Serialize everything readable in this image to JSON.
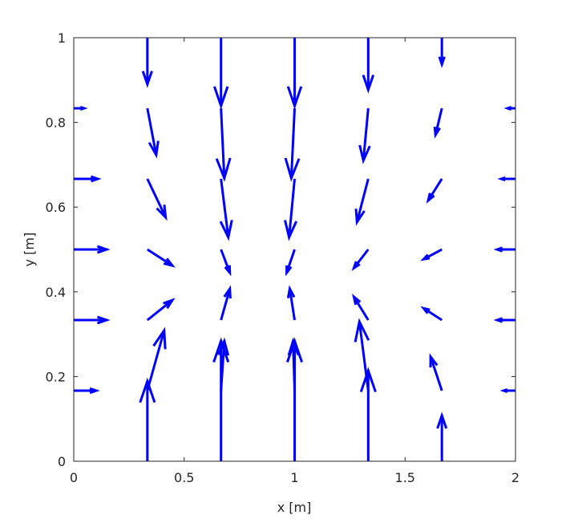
{
  "chart_data": {
    "type": "quiver",
    "title": "",
    "xlabel": "x  [m]",
    "ylabel": "y  [m]",
    "xlim": [
      0,
      2
    ],
    "ylim": [
      0,
      1
    ],
    "xticks": [
      0,
      0.5,
      1,
      1.5,
      2
    ],
    "xtick_labels": [
      "0",
      "0.5",
      "1",
      "1.5",
      "2"
    ],
    "yticks": [
      0,
      0.2,
      0.4,
      0.6,
      0.8,
      1
    ],
    "ytick_labels": [
      "0",
      "0.2",
      "0.4",
      "0.6",
      "0.8",
      "1"
    ],
    "grid": false,
    "color": "#0000ff",
    "vectors_xyuv": [
      [
        0,
        0.8333,
        0.047,
        0
      ],
      [
        0,
        0.6667,
        0.109,
        0
      ],
      [
        0,
        0.5,
        0.149,
        0
      ],
      [
        0,
        0.3333,
        0.149,
        0
      ],
      [
        0,
        0.1667,
        0.102,
        0
      ],
      [
        0.3333,
        1,
        0,
        -0.11
      ],
      [
        0.3333,
        0.8333,
        0.04,
        -0.11
      ],
      [
        0.3333,
        0.6667,
        0.083,
        -0.091
      ],
      [
        0.3333,
        0.5,
        0.113,
        -0.038
      ],
      [
        0.3333,
        0.3333,
        0.113,
        0.047
      ],
      [
        0.3333,
        0.1667,
        0.076,
        0.142
      ],
      [
        0.3333,
        0,
        0,
        0.189
      ],
      [
        0.6667,
        1,
        0,
        -0.161
      ],
      [
        0.6667,
        0.8333,
        0.015,
        -0.165
      ],
      [
        0.6667,
        0.6667,
        0.033,
        -0.138
      ],
      [
        0.6667,
        0.5,
        0.04,
        -0.055
      ],
      [
        0.6667,
        0.3333,
        0.04,
        0.074
      ],
      [
        0.6667,
        0.1667,
        0.015,
        0.117
      ],
      [
        0.6667,
        0,
        0,
        0.284
      ],
      [
        1,
        1,
        0,
        -0.161
      ],
      [
        1,
        0.8333,
        -0.015,
        -0.165
      ],
      [
        1,
        0.6667,
        -0.025,
        -0.138
      ],
      [
        1,
        0.5,
        -0.036,
        -0.055
      ],
      [
        1,
        0.3333,
        -0.022,
        0.074
      ],
      [
        1,
        0.1667,
        -0.007,
        0.117
      ],
      [
        1,
        0,
        0,
        0.284
      ],
      [
        1.3333,
        1,
        0,
        -0.123
      ],
      [
        1.3333,
        0.8333,
        -0.022,
        -0.123
      ],
      [
        1.3333,
        0.6667,
        -0.051,
        -0.102
      ],
      [
        1.3333,
        0.5,
        -0.065,
        -0.044
      ],
      [
        1.3333,
        0.3333,
        -0.065,
        0.055
      ],
      [
        1.3333,
        0.1667,
        -0.04,
        0.163
      ],
      [
        1.3333,
        0,
        0,
        0.214
      ],
      [
        1.6667,
        1,
        0,
        -0.063
      ],
      [
        1.6667,
        0.8333,
        -0.029,
        -0.063
      ],
      [
        1.6667,
        0.6667,
        -0.062,
        -0.051
      ],
      [
        1.6667,
        0.5,
        -0.083,
        -0.023
      ],
      [
        1.6667,
        0.3333,
        -0.083,
        0.028
      ],
      [
        1.6667,
        0.1667,
        -0.051,
        0.08
      ],
      [
        1.6667,
        0,
        0,
        0.108
      ],
      [
        2,
        0.8333,
        -0.036,
        0
      ],
      [
        2,
        0.6667,
        -0.065,
        0
      ],
      [
        2,
        0.5,
        -0.083,
        0
      ],
      [
        2,
        0.3333,
        -0.083,
        0
      ],
      [
        2,
        0.1667,
        -0.054,
        0
      ]
    ]
  }
}
